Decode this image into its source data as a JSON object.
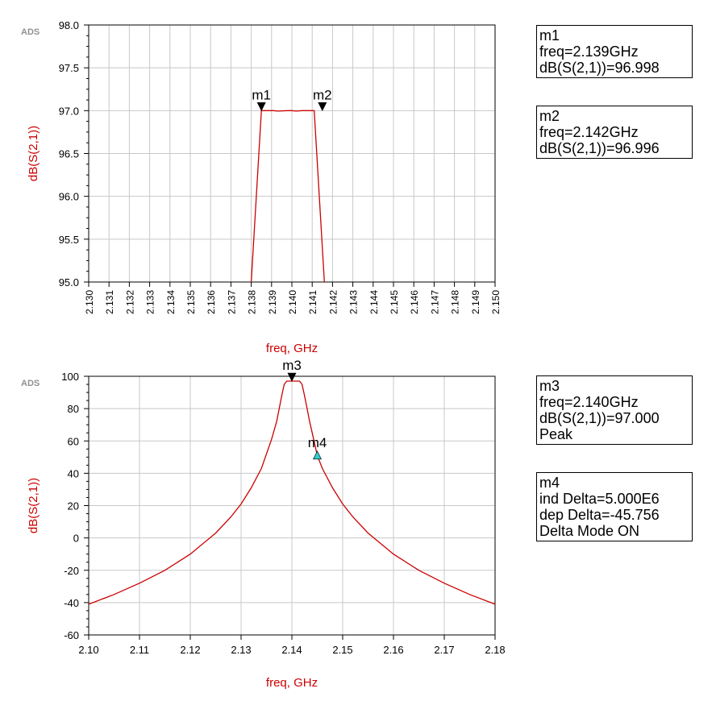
{
  "chart_data": [
    {
      "type": "line",
      "watermark": "ADS",
      "xlabel": "freq, GHz",
      "ylabel": "dB(S(2,1))",
      "xlim": [
        2.13,
        2.15
      ],
      "ylim": [
        95.0,
        98.0
      ],
      "xticks": [
        "2.130",
        "2.131",
        "2.132",
        "2.133",
        "2.134",
        "2.135",
        "2.136",
        "2.137",
        "2.138",
        "2.139",
        "2.140",
        "2.141",
        "2.142",
        "2.143",
        "2.144",
        "2.145",
        "2.146",
        "2.147",
        "2.148",
        "2.149",
        "2.150"
      ],
      "yticks": [
        "95.0",
        "95.5",
        "96.0",
        "96.5",
        "97.0",
        "97.5",
        "98.0"
      ],
      "series": [
        {
          "color": "#cc0000",
          "x": [
            2.138,
            2.1385,
            2.1391,
            2.1393,
            2.1398,
            2.14,
            2.1402,
            2.1405,
            2.141,
            2.1411,
            2.1416
          ],
          "y": [
            95.0,
            97.0,
            97.0,
            96.995,
            97.0,
            97.0,
            96.995,
            97.0,
            97.0,
            97.0,
            95.0
          ]
        }
      ],
      "markers": [
        {
          "name": "m1",
          "x": 2.1385,
          "y": 97.0
        },
        {
          "name": "m2",
          "x": 2.1415,
          "y": 97.0
        }
      ]
    },
    {
      "type": "line",
      "watermark": "ADS",
      "xlabel": "freq, GHz",
      "ylabel": "dB(S(2,1))",
      "xlim": [
        2.1,
        2.18
      ],
      "ylim": [
        -60,
        100
      ],
      "xticks": [
        "2.10",
        "2.11",
        "2.12",
        "2.13",
        "2.14",
        "2.15",
        "2.16",
        "2.17",
        "2.18"
      ],
      "yticks": [
        "-60",
        "-40",
        "-20",
        "0",
        "20",
        "40",
        "60",
        "80",
        "100"
      ],
      "series": [
        {
          "color": "#cc0000",
          "x": [
            2.1,
            2.105,
            2.11,
            2.115,
            2.12,
            2.125,
            2.128,
            2.13,
            2.132,
            2.134,
            2.135,
            2.136,
            2.137,
            2.1375,
            2.138,
            2.1385,
            2.139,
            2.1415,
            2.142,
            2.1425,
            2.143,
            2.1435,
            2.144,
            2.145,
            2.146,
            2.148,
            2.15,
            2.152,
            2.155,
            2.16,
            2.165,
            2.17,
            2.175,
            2.18
          ],
          "y": [
            -41,
            -35,
            -28,
            -20,
            -10,
            3,
            13,
            21,
            31,
            43,
            52,
            61,
            72,
            80,
            88,
            95,
            97,
            97,
            95,
            88,
            80,
            72,
            65,
            51,
            43,
            31,
            21,
            13,
            3,
            -10,
            -20,
            -28,
            -35,
            -41
          ]
        }
      ],
      "markers": [
        {
          "name": "m3",
          "x": 2.14,
          "y": 97.0
        },
        {
          "name": "m4",
          "x": 2.145,
          "y": 51.244
        }
      ]
    }
  ],
  "marker_readouts": [
    {
      "lines": [
        "m1",
        "freq=2.139GHz",
        "dB(S(2,1))=96.998"
      ]
    },
    {
      "lines": [
        "m2",
        "freq=2.142GHz",
        "dB(S(2,1))=96.996"
      ]
    },
    {
      "lines": [
        "m3",
        "freq=2.140GHz",
        "dB(S(2,1))=97.000",
        "Peak"
      ]
    },
    {
      "lines": [
        "m4",
        "ind Delta=5.000E6",
        "dep Delta=-45.756",
        "Delta Mode ON"
      ]
    }
  ],
  "colors": {
    "trace": "#cc0000",
    "axis_label": "#cc0000",
    "grid": "#c8c8c8",
    "marker_delta": "#33cccc",
    "marker": "#000000"
  }
}
